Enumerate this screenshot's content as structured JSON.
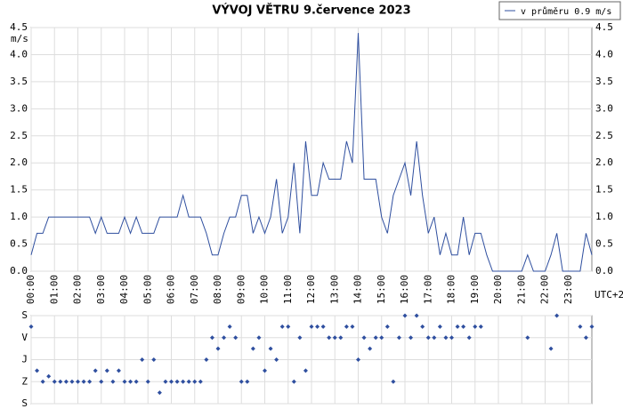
{
  "chart_data": [
    {
      "type": "line",
      "title": "VÝVOJ VĚTRU  9.července 2023",
      "y_label": "m/s",
      "x_label": "UTC+2",
      "x": [
        0,
        0.25,
        0.5,
        0.75,
        1,
        1.25,
        1.5,
        1.75,
        2,
        2.25,
        2.5,
        2.75,
        3,
        3.25,
        3.5,
        3.75,
        4,
        4.25,
        4.5,
        4.75,
        5,
        5.25,
        5.5,
        5.75,
        6,
        6.25,
        6.5,
        6.75,
        7,
        7.25,
        7.5,
        7.75,
        8,
        8.25,
        8.5,
        8.75,
        9,
        9.25,
        9.5,
        9.75,
        10,
        10.25,
        10.5,
        10.75,
        11,
        11.25,
        11.5,
        11.75,
        12,
        12.25,
        12.5,
        12.75,
        13,
        13.25,
        13.5,
        13.75,
        14,
        14.25,
        14.5,
        14.75,
        15,
        15.25,
        15.5,
        15.75,
        16,
        16.25,
        16.5,
        16.75,
        17,
        17.25,
        17.5,
        17.75,
        18,
        18.25,
        18.5,
        18.75,
        19,
        19.25,
        19.5,
        19.75,
        20,
        20.25,
        20.5,
        20.75,
        21,
        21.25,
        21.5,
        21.75,
        22,
        22.25,
        22.5,
        22.75,
        23,
        23.25,
        23.5,
        23.75,
        24
      ],
      "series": [
        {
          "name": "v průměru 0.9 m/s",
          "color": "#2f4f9f",
          "values": [
            0.3,
            0.7,
            0.7,
            1.0,
            1.0,
            1.0,
            1.0,
            1.0,
            1.0,
            1.0,
            1.0,
            0.7,
            1.0,
            0.7,
            0.7,
            0.7,
            1.0,
            0.7,
            1.0,
            0.7,
            0.7,
            0.7,
            1.0,
            1.0,
            1.0,
            1.0,
            1.4,
            1.0,
            1.0,
            1.0,
            0.7,
            0.3,
            0.3,
            0.7,
            1.0,
            1.0,
            1.4,
            1.4,
            0.7,
            1.0,
            0.7,
            1.0,
            1.7,
            0.7,
            1.0,
            2.0,
            0.7,
            2.4,
            1.4,
            1.4,
            2.0,
            1.7,
            1.7,
            1.7,
            2.4,
            2.0,
            4.4,
            1.7,
            1.7,
            1.7,
            1.0,
            0.7,
            1.4,
            1.7,
            2.0,
            1.4,
            2.4,
            1.4,
            0.7,
            1.0,
            0.3,
            0.7,
            0.3,
            0.3,
            1.0,
            0.3,
            0.7,
            0.7,
            0.3,
            0,
            0,
            0,
            0,
            0,
            0,
            0.3,
            0,
            0,
            0,
            0.3,
            0.7,
            0,
            0,
            0,
            0,
            0.7,
            0.3
          ]
        }
      ],
      "xlim": [
        0,
        24
      ],
      "xticks": [
        {
          "value": 0,
          "label": "00:00"
        },
        {
          "value": 1,
          "label": "01:00"
        },
        {
          "value": 2,
          "label": "02:00"
        },
        {
          "value": 3,
          "label": "03:00"
        },
        {
          "value": 4,
          "label": "04:00"
        },
        {
          "value": 5,
          "label": "05:00"
        },
        {
          "value": 6,
          "label": "06:00"
        },
        {
          "value": 7,
          "label": "07:00"
        },
        {
          "value": 8,
          "label": "08:00"
        },
        {
          "value": 9,
          "label": "09:00"
        },
        {
          "value": 10,
          "label": "10:00"
        },
        {
          "value": 11,
          "label": "11:00"
        },
        {
          "value": 12,
          "label": "12:00"
        },
        {
          "value": 13,
          "label": "13:00"
        },
        {
          "value": 14,
          "label": "14:00"
        },
        {
          "value": 15,
          "label": "15:00"
        },
        {
          "value": 16,
          "label": "16:00"
        },
        {
          "value": 17,
          "label": "17:00"
        },
        {
          "value": 18,
          "label": "18:00"
        },
        {
          "value": 19,
          "label": "19:00"
        },
        {
          "value": 20,
          "label": "20:00"
        },
        {
          "value": 21,
          "label": "21:00"
        },
        {
          "value": 22,
          "label": "22:00"
        },
        {
          "value": 23,
          "label": "23:00"
        }
      ],
      "ylim": [
        0,
        4.5
      ],
      "yticks": [
        {
          "value": 0,
          "label": "0.0"
        },
        {
          "value": 0.5,
          "label": "0.5"
        },
        {
          "value": 1,
          "label": "1.0"
        },
        {
          "value": 1.5,
          "label": "1.5"
        },
        {
          "value": 2,
          "label": "2.0"
        },
        {
          "value": 2.5,
          "label": "2.5"
        },
        {
          "value": 3,
          "label": "3.0"
        },
        {
          "value": 3.5,
          "label": "3.5"
        },
        {
          "value": 4,
          "label": "4.0"
        },
        {
          "value": 4.5,
          "label": "4.5"
        }
      ],
      "grid": true,
      "legend": "top-right"
    },
    {
      "type": "scatter",
      "color": "#2f4f9f",
      "x": [
        0,
        0.25,
        0.5,
        0.75,
        1,
        1.25,
        1.5,
        1.75,
        2,
        2.25,
        2.5,
        2.75,
        3,
        3.25,
        3.5,
        3.75,
        4,
        4.25,
        4.5,
        4.75,
        5,
        5.25,
        5.5,
        5.75,
        6,
        6.25,
        6.5,
        6.75,
        7,
        7.25,
        7.5,
        7.75,
        8,
        8.25,
        8.5,
        8.75,
        9,
        9.25,
        9.5,
        9.75,
        10,
        10.25,
        10.5,
        10.75,
        11,
        11.25,
        11.5,
        11.75,
        12,
        12.25,
        12.5,
        12.75,
        13,
        13.25,
        13.5,
        13.75,
        14,
        14.25,
        14.5,
        14.75,
        15,
        15.25,
        15.5,
        15.75,
        16,
        16.25,
        16.5,
        16.75,
        17,
        17.25,
        17.5,
        17.75,
        18,
        18.25,
        18.5,
        18.75,
        19,
        19.25,
        19.5,
        19.75,
        20,
        20.25,
        20.5,
        20.75,
        21,
        21.25,
        21.5,
        21.75,
        22,
        22.25,
        22.5,
        22.75,
        23,
        23.25,
        23.5,
        23.75,
        24
      ],
      "values": [
        45,
        225,
        270,
        248,
        270,
        270,
        270,
        270,
        270,
        270,
        270,
        225,
        270,
        225,
        270,
        225,
        270,
        270,
        270,
        180,
        270,
        180,
        315,
        270,
        270,
        270,
        270,
        270,
        270,
        270,
        180,
        90,
        135,
        90,
        45,
        90,
        270,
        270,
        135,
        90,
        225,
        135,
        180,
        45,
        45,
        270,
        90,
        225,
        45,
        45,
        45,
        90,
        90,
        90,
        45,
        45,
        180,
        90,
        135,
        90,
        90,
        45,
        270,
        90,
        0,
        90,
        0,
        45,
        90,
        90,
        45,
        90,
        90,
        45,
        45,
        90,
        45,
        45,
        null,
        null,
        null,
        null,
        null,
        null,
        null,
        90,
        null,
        null,
        null,
        135,
        0,
        null,
        null,
        null,
        45,
        90,
        45
      ],
      "xlim": [
        0,
        24
      ],
      "ylim": [
        360,
        0
      ],
      "yticks": [
        {
          "value": 0,
          "label": "S"
        },
        {
          "value": 90,
          "label": "V"
        },
        {
          "value": 180,
          "label": "J"
        },
        {
          "value": 270,
          "label": "Z"
        },
        {
          "value": 360,
          "label": "S"
        }
      ],
      "grid": true
    }
  ]
}
